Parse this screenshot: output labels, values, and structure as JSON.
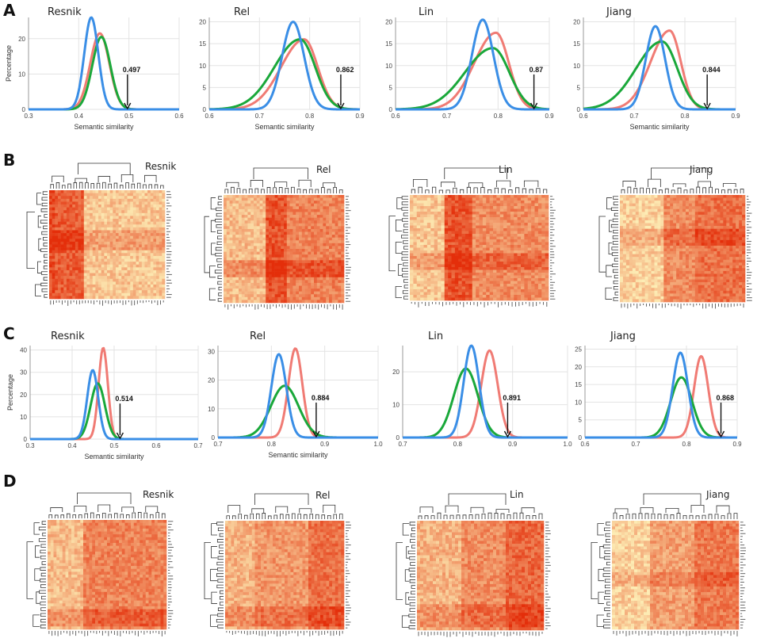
{
  "panels": {
    "A": "A",
    "B": "B",
    "C": "C",
    "D": "D"
  },
  "colors": {
    "red": "#f07b74",
    "green": "#1aa83a",
    "blue": "#3a8ee6",
    "grid": "#e3e3e3",
    "axis": "#999999"
  },
  "chart_data": [
    {
      "panel": "A",
      "type": "line",
      "title": "Resnik",
      "xlabel": "Semantic similarity",
      "ylabel": "Percentage",
      "xlim": [
        0.3,
        0.6
      ],
      "ylim": [
        0,
        26
      ],
      "xticks": [
        0.3,
        0.4,
        0.5,
        0.6
      ],
      "yticks": [
        0,
        10,
        20
      ],
      "xtick_labels": [
        "0.3",
        "0.4",
        "0.5",
        "0.6"
      ],
      "ytick_labels": [
        "0",
        "10",
        "20"
      ],
      "annotation": {
        "label": "0.497",
        "x": 0.497
      },
      "series": [
        {
          "name": "red",
          "mean": 0.442,
          "sd": 0.019,
          "peak": 21.5,
          "skew": 0
        },
        {
          "name": "green",
          "mean": 0.445,
          "sd": 0.018,
          "peak": 20.5,
          "skew": 0
        },
        {
          "name": "blue",
          "mean": 0.425,
          "sd": 0.014,
          "peak": 26,
          "skew": 0
        }
      ]
    },
    {
      "panel": "A",
      "type": "line",
      "title": "Rel",
      "xlabel": "Semantic similarity",
      "ylabel": "",
      "xlim": [
        0.6,
        0.9
      ],
      "ylim": [
        0,
        21
      ],
      "xticks": [
        0.6,
        0.7,
        0.8,
        0.9
      ],
      "yticks": [
        0,
        5,
        10,
        15,
        20
      ],
      "xtick_labels": [
        "0.6",
        "0.7",
        "0.8",
        "0.9"
      ],
      "ytick_labels": [
        "0",
        "5",
        "10",
        "15",
        "20"
      ],
      "annotation": {
        "label": "0.862",
        "x": 0.862
      },
      "series": [
        {
          "name": "red",
          "mean": 0.789,
          "sd": 0.027,
          "peak": 16,
          "skew": -0.6
        },
        {
          "name": "green",
          "mean": 0.781,
          "sd": 0.03,
          "peak": 16,
          "skew": -0.6
        },
        {
          "name": "blue",
          "mean": 0.767,
          "sd": 0.022,
          "peak": 20,
          "skew": 0
        }
      ]
    },
    {
      "panel": "A",
      "type": "line",
      "title": "Lin",
      "xlabel": "",
      "ylabel": "",
      "xlim": [
        0.6,
        0.9
      ],
      "ylim": [
        0,
        21
      ],
      "xticks": [
        0.6,
        0.7,
        0.8,
        0.9
      ],
      "yticks": [
        0,
        5,
        10,
        15,
        20
      ],
      "xtick_labels": [
        "0.6",
        "0.7",
        "0.8",
        "0.9"
      ],
      "ytick_labels": [
        "0",
        "5",
        "10",
        "15",
        "20"
      ],
      "annotation": {
        "label": "0.87",
        "x": 0.87
      },
      "series": [
        {
          "name": "red",
          "mean": 0.796,
          "sd": 0.025,
          "peak": 17.5,
          "skew": -0.6
        },
        {
          "name": "green",
          "mean": 0.79,
          "sd": 0.032,
          "peak": 14,
          "skew": -0.6
        },
        {
          "name": "blue",
          "mean": 0.77,
          "sd": 0.021,
          "peak": 20.5,
          "skew": 0
        }
      ]
    },
    {
      "panel": "A",
      "type": "line",
      "title": "Jiang",
      "xlabel": "Semantic similarity",
      "ylabel": "",
      "xlim": [
        0.6,
        0.9
      ],
      "ylim": [
        0,
        21
      ],
      "xticks": [
        0.6,
        0.7,
        0.8,
        0.9
      ],
      "yticks": [
        0,
        5,
        10,
        15,
        20
      ],
      "xtick_labels": [
        "0.6",
        "0.7",
        "0.8",
        "0.9"
      ],
      "ytick_labels": [
        "0",
        "5",
        "10",
        "15",
        "20"
      ],
      "annotation": {
        "label": "0.844",
        "x": 0.844
      },
      "series": [
        {
          "name": "red",
          "mean": 0.77,
          "sd": 0.022,
          "peak": 18,
          "skew": -0.6
        },
        {
          "name": "green",
          "mean": 0.755,
          "sd": 0.03,
          "peak": 15.5,
          "skew": -0.6
        },
        {
          "name": "blue",
          "mean": 0.742,
          "sd": 0.019,
          "peak": 19,
          "skew": 0
        }
      ]
    },
    {
      "panel": "C",
      "type": "line",
      "title": "Resnik",
      "xlabel": "Semantic similarity",
      "ylabel": "Percentage",
      "xlim": [
        0.3,
        0.7
      ],
      "ylim": [
        0,
        42
      ],
      "xticks": [
        0.3,
        0.4,
        0.5,
        0.6,
        0.7
      ],
      "yticks": [
        0,
        10,
        20,
        30,
        40
      ],
      "xtick_labels": [
        "0.3",
        "0.4",
        "0.5",
        "0.6",
        "0.7"
      ],
      "ytick_labels": [
        "0",
        "10",
        "20",
        "30",
        "40"
      ],
      "annotation": {
        "label": "0.514",
        "x": 0.514
      },
      "series": [
        {
          "name": "red",
          "mean": 0.474,
          "sd": 0.011,
          "peak": 41,
          "skew": 0
        },
        {
          "name": "green",
          "mean": 0.461,
          "sd": 0.017,
          "peak": 25,
          "skew": 0
        },
        {
          "name": "blue",
          "mean": 0.449,
          "sd": 0.013,
          "peak": 31,
          "skew": 0
        }
      ]
    },
    {
      "panel": "C",
      "type": "line",
      "title": "Rel",
      "xlabel": "Semantic similarity",
      "ylabel": "",
      "xlim": [
        0.7,
        1.0
      ],
      "ylim": [
        0,
        32
      ],
      "xticks": [
        0.7,
        0.8,
        0.9,
        1.0
      ],
      "yticks": [
        0,
        10,
        20,
        30
      ],
      "xtick_labels": [
        "0.7",
        "0.8",
        "0.9",
        "1.0"
      ],
      "ytick_labels": [
        "0",
        "10",
        "20",
        "30"
      ],
      "annotation": {
        "label": "0.884",
        "x": 0.884
      },
      "series": [
        {
          "name": "red",
          "mean": 0.845,
          "sd": 0.013,
          "peak": 31,
          "skew": 0
        },
        {
          "name": "green",
          "mean": 0.825,
          "sd": 0.026,
          "peak": 18,
          "skew": 0
        },
        {
          "name": "blue",
          "mean": 0.814,
          "sd": 0.014,
          "peak": 29,
          "skew": 0
        }
      ]
    },
    {
      "panel": "C",
      "type": "line",
      "title": "Lin",
      "xlabel": "",
      "ylabel": "",
      "xlim": [
        0.7,
        1.0
      ],
      "ylim": [
        0,
        28
      ],
      "xticks": [
        0.7,
        0.8,
        0.9,
        1.0
      ],
      "yticks": [
        0,
        10,
        20
      ],
      "xtick_labels": [
        "0.7",
        "0.8",
        "0.9",
        "1.0"
      ],
      "ytick_labels": [
        "0",
        "10",
        "20"
      ],
      "annotation": {
        "label": "0.891",
        "x": 0.891
      },
      "series": [
        {
          "name": "red",
          "mean": 0.858,
          "sd": 0.015,
          "peak": 26.5,
          "skew": 0
        },
        {
          "name": "green",
          "mean": 0.815,
          "sd": 0.022,
          "peak": 21,
          "skew": 0
        },
        {
          "name": "blue",
          "mean": 0.825,
          "sd": 0.014,
          "peak": 28,
          "skew": 0
        }
      ]
    },
    {
      "panel": "C",
      "type": "line",
      "title": "Jiang",
      "xlabel": "",
      "ylabel": "",
      "xlim": [
        0.6,
        0.9
      ],
      "ylim": [
        0,
        26
      ],
      "xticks": [
        0.6,
        0.7,
        0.8,
        0.9
      ],
      "yticks": [
        0,
        5,
        10,
        15,
        20,
        25
      ],
      "xtick_labels": [
        "0.6",
        "0.7",
        "0.8",
        "0.9"
      ],
      "ytick_labels": [
        "0",
        "5",
        "10",
        "15",
        "20",
        "25"
      ],
      "annotation": {
        "label": "0.868",
        "x": 0.868
      },
      "series": [
        {
          "name": "red",
          "mean": 0.829,
          "sd": 0.014,
          "peak": 23,
          "skew": 0
        },
        {
          "name": "green",
          "mean": 0.79,
          "sd": 0.021,
          "peak": 17,
          "skew": 0
        },
        {
          "name": "blue",
          "mean": 0.788,
          "sd": 0.015,
          "peak": 24,
          "skew": 0
        }
      ]
    }
  ],
  "heatmaps": [
    {
      "panel": "B",
      "title": "Resnik"
    },
    {
      "panel": "B",
      "title": "Rel"
    },
    {
      "panel": "B",
      "title": "Lin"
    },
    {
      "panel": "B",
      "title": "Jiang"
    },
    {
      "panel": "D",
      "title": "Resnik"
    },
    {
      "panel": "D",
      "title": "Rel"
    },
    {
      "panel": "D",
      "title": "Lin"
    },
    {
      "panel": "D",
      "title": "Jiang"
    }
  ]
}
